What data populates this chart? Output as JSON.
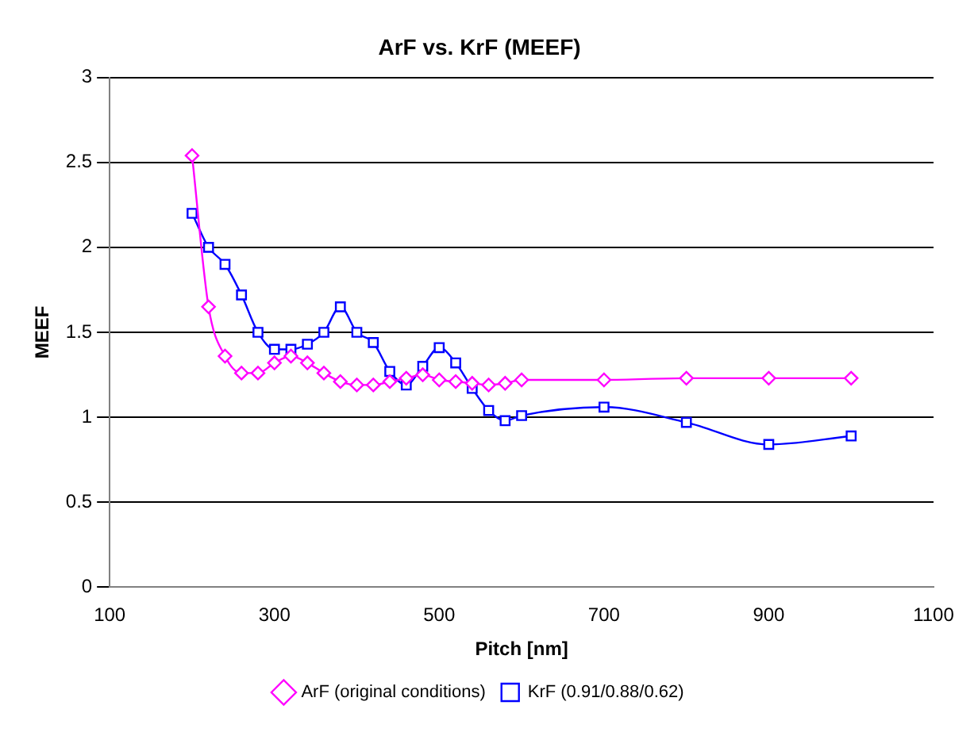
{
  "chart_data": {
    "type": "line",
    "title": "ArF vs. KrF (MEEF)",
    "xlabel": "Pitch [nm]",
    "ylabel": "MEEF",
    "xlim": [
      100,
      1100
    ],
    "xticks": [
      100,
      300,
      500,
      700,
      900,
      1100
    ],
    "ylim": [
      0,
      3
    ],
    "yticks": [
      0,
      0.5,
      1,
      1.5,
      2,
      2.5,
      3
    ],
    "grid": "y",
    "legend": "bottom",
    "series": [
      {
        "name": "ArF (original conditions)",
        "color": "#ff00ff",
        "marker": "diamond",
        "x": [
          200,
          220,
          240,
          260,
          280,
          300,
          320,
          340,
          360,
          380,
          400,
          420,
          440,
          460,
          480,
          500,
          520,
          540,
          560,
          580,
          600,
          700,
          800,
          900,
          1000
        ],
        "values": [
          2.54,
          1.65,
          1.36,
          1.26,
          1.26,
          1.32,
          1.36,
          1.32,
          1.26,
          1.21,
          1.19,
          1.19,
          1.21,
          1.23,
          1.25,
          1.22,
          1.21,
          1.2,
          1.19,
          1.2,
          1.22,
          1.22,
          1.23,
          1.23,
          1.23
        ]
      },
      {
        "name": "KrF (0.91/0.88/0.62)",
        "color": "#0000ff",
        "marker": "square",
        "x": [
          200,
          220,
          240,
          260,
          280,
          300,
          320,
          340,
          360,
          380,
          400,
          420,
          440,
          460,
          480,
          500,
          520,
          540,
          560,
          580,
          600,
          700,
          800,
          900,
          1000
        ],
        "values": [
          2.2,
          2.0,
          1.9,
          1.72,
          1.5,
          1.4,
          1.4,
          1.43,
          1.5,
          1.65,
          1.5,
          1.44,
          1.27,
          1.19,
          1.3,
          1.41,
          1.32,
          1.17,
          1.04,
          0.98,
          1.01,
          1.06,
          0.97,
          0.84,
          0.89
        ]
      }
    ]
  }
}
